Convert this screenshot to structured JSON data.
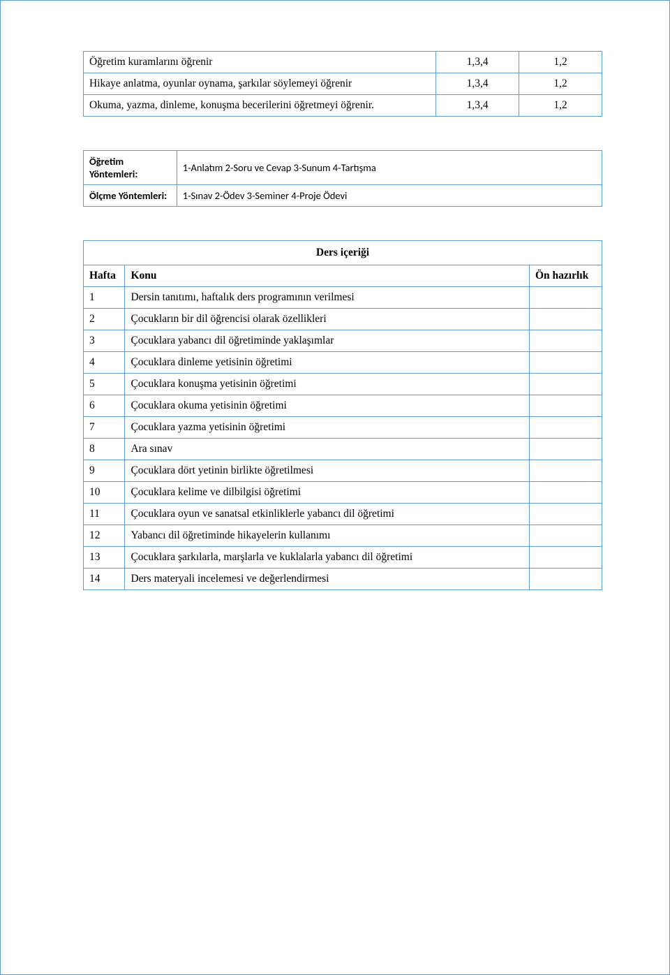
{
  "colors": {
    "border": "#5b9bd5",
    "text": "#000000",
    "background": "#ffffff"
  },
  "outcomes": {
    "rows": [
      {
        "text": "Öğretim kuramlarını öğrenir",
        "c2": "1,3,4",
        "c3": "1,2"
      },
      {
        "text": "Hikaye anlatma, oyunlar oynama, şarkılar söylemeyi öğrenir",
        "c2": "1,3,4",
        "c3": "1,2"
      },
      {
        "text": "Okuma, yazma, dinleme, konuşma becerilerini öğretmeyi öğrenir.",
        "c2": "1,3,4",
        "c3": "1,2"
      }
    ]
  },
  "methods": {
    "teach_label": "Öğretim Yöntemleri:",
    "teach_value": "1-Anlatım  2-Soru ve Cevap  3-Sunum  4-Tartışma",
    "assess_label": "Ölçme Yöntemleri:",
    "assess_value": "1-Sınav  2-Ödev  3-Seminer  4-Proje Ödevi"
  },
  "content": {
    "title": "Ders içeriği",
    "col_week": "Hafta",
    "col_topic": "Konu",
    "col_prep": "Ön hazırlık",
    "rows": [
      {
        "n": "1",
        "t": "Dersin tanıtımı, haftalık ders programının verilmesi",
        "bold": false
      },
      {
        "n": "2",
        "t": "Çocukların bir dil öğrencisi olarak özellikleri",
        "bold": false
      },
      {
        "n": "3",
        "t": "Çocuklara yabancı dil öğretiminde yaklaşımlar",
        "bold": false
      },
      {
        "n": "4",
        "t": "Çocuklara dinleme yetisinin öğretimi",
        "bold": false
      },
      {
        "n": "5",
        "t": "Çocuklara konuşma yetisinin öğretimi",
        "bold": false
      },
      {
        "n": "6",
        "t": "Çocuklara okuma yetisinin öğretimi",
        "bold": false
      },
      {
        "n": "7",
        "t": "Çocuklara yazma yetisinin öğretimi",
        "bold": false
      },
      {
        "n": "8",
        "t": "Ara sınav",
        "bold": true
      },
      {
        "n": "9",
        "t": "Çocuklara dört yetinin birlikte öğretilmesi",
        "bold": false
      },
      {
        "n": "10",
        "t": "Çocuklara kelime ve dilbilgisi öğretimi",
        "bold": false
      },
      {
        "n": "11",
        "t": "Çocuklara oyun ve sanatsal etkinliklerle yabancı dil öğretimi",
        "bold": false
      },
      {
        "n": "12",
        "t": "Yabancı dil öğretiminde hikayelerin kullanımı",
        "bold": false
      },
      {
        "n": "13",
        "t": "Çocuklara şarkılarla, marşlarla ve kuklalarla yabancı dil öğretimi",
        "bold": false
      },
      {
        "n": "14",
        "t": "Ders materyali incelemesi ve değerlendirmesi",
        "bold": false
      }
    ]
  }
}
